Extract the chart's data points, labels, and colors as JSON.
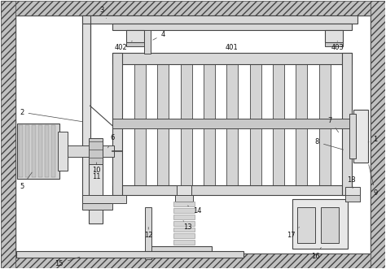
{
  "fig_width": 4.74,
  "fig_height": 3.31,
  "dpi": 100,
  "bg_color": "#ffffff",
  "line_color": "#444444",
  "hatch_fc": "#c0c0c0",
  "light_gray": "#e8e8e8",
  "med_gray": "#d0d0d0",
  "dark_gray": "#b0b0b0"
}
